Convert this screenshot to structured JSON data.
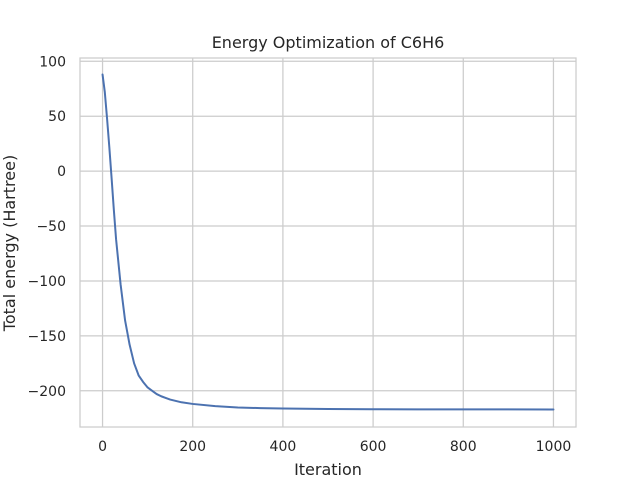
{
  "chart_data": {
    "type": "line",
    "title": "Energy Optimization of C6H6",
    "xlabel": "Iteration",
    "ylabel": "Total energy (Hartree)",
    "xlim": [
      -50,
      1050
    ],
    "ylim": [
      -233,
      103
    ],
    "x_ticks": [
      0,
      200,
      400,
      600,
      800,
      1000
    ],
    "y_ticks": [
      100,
      50,
      0,
      -50,
      -100,
      -150,
      -200
    ],
    "x_tick_labels": [
      "0",
      "200",
      "400",
      "600",
      "800",
      "1000"
    ],
    "y_tick_labels": [
      "100",
      "50",
      "0",
      "−50",
      "−100",
      "−150",
      "−200"
    ],
    "grid": true,
    "series": [
      {
        "color": "#4c72b0",
        "x": [
          0,
          5,
          10,
          15,
          20,
          25,
          30,
          40,
          50,
          60,
          70,
          80,
          90,
          100,
          110,
          120,
          130,
          140,
          150,
          175,
          200,
          250,
          300,
          350,
          400,
          500,
          600,
          700,
          800,
          900,
          1000
        ],
        "y": [
          88,
          72,
          48,
          22,
          -6,
          -35,
          -62,
          -103,
          -136,
          -158,
          -175,
          -186,
          -192,
          -197,
          -200,
          -203,
          -205,
          -206.5,
          -208,
          -210.5,
          -212,
          -214,
          -215.2,
          -215.8,
          -216.2,
          -216.6,
          -216.8,
          -216.9,
          -217,
          -217,
          -217.1
        ]
      }
    ]
  }
}
